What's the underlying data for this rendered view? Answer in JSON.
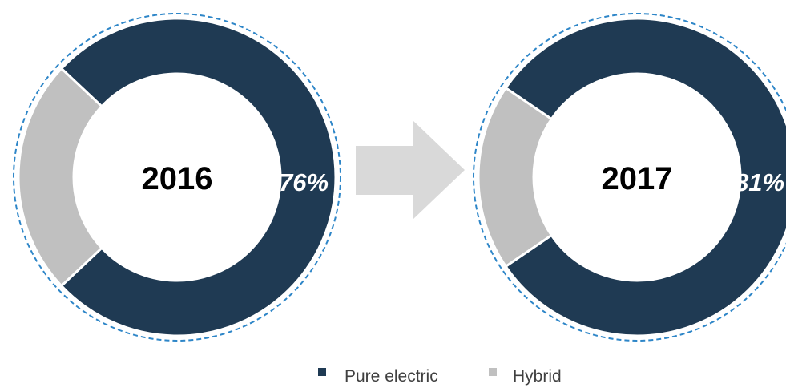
{
  "colors": {
    "pure_electric": "#1f3a53",
    "hybrid": "#c0c0c0",
    "dashed_ring": "#2e86c8",
    "arrow": "#d9d9d9",
    "center_text": "#000000",
    "pct_text": "#ffffff"
  },
  "chart_data": [
    {
      "type": "pie",
      "variant": "donut",
      "center_label": "2016",
      "categories": [
        "Pure electric",
        "Hybrid"
      ],
      "values": [
        76,
        24
      ],
      "highlight_label": "76%"
    },
    {
      "type": "pie",
      "variant": "donut",
      "center_label": "2017",
      "categories": [
        "Pure electric",
        "Hybrid"
      ],
      "values": [
        81,
        19
      ],
      "highlight_label": "81%"
    }
  ],
  "legend": {
    "placement": "bottom-center",
    "items": [
      {
        "label": "Pure electric",
        "color": "#1f3a53"
      },
      {
        "label": "Hybrid",
        "color": "#c0c0c0"
      }
    ]
  },
  "arrow_icon": "right-arrow-icon"
}
